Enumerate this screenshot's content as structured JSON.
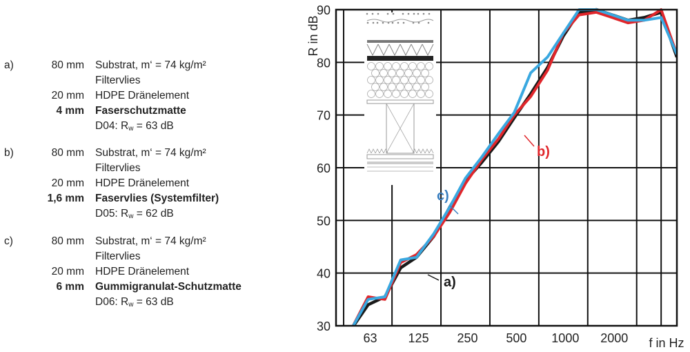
{
  "variants": [
    {
      "letter": "a)",
      "layers": [
        {
          "thickness": "80 mm",
          "text": "Substrat, m‘ = 74 kg/m²",
          "bold": false
        },
        {
          "thickness": "",
          "text": "Filtervlies",
          "bold": false
        },
        {
          "thickness": "20 mm",
          "text": "HDPE Dränelement",
          "bold": false
        },
        {
          "thickness": "4 mm",
          "text": "Faserschutzmatte",
          "bold": true
        }
      ],
      "rating_prefix": "D04: R",
      "rating_sub": "w",
      "rating_value": " = 63 dB"
    },
    {
      "letter": "b)",
      "layers": [
        {
          "thickness": "80 mm",
          "text": "Substrat, m‘ = 74 kg/m²",
          "bold": false
        },
        {
          "thickness": "",
          "text": "Filtervlies",
          "bold": false
        },
        {
          "thickness": "20 mm",
          "text": "HDPE Dränelement",
          "bold": false
        },
        {
          "thickness": "1,6 mm",
          "text": "Faservlies (Systemfilter)",
          "bold": true
        }
      ],
      "rating_prefix": "D05: R",
      "rating_sub": "w",
      "rating_value": " = 62 dB"
    },
    {
      "letter": "c)",
      "layers": [
        {
          "thickness": "80 mm",
          "text": "Substrat, m‘ = 74 kg/m²",
          "bold": false
        },
        {
          "thickness": "",
          "text": "Filtervlies",
          "bold": false
        },
        {
          "thickness": "20 mm",
          "text": "HDPE Dränelement",
          "bold": false
        },
        {
          "thickness": "6 mm",
          "text": "Gummigranulat-Schutzmatte",
          "bold": true
        }
      ],
      "rating_prefix": "D06: R",
      "rating_sub": "w",
      "rating_value": " = 63 dB"
    }
  ],
  "chart_data": {
    "type": "line",
    "ylabel": "R in dB",
    "xlabel": "f in Hz",
    "xscale": "log",
    "xlim": [
      40,
      5000
    ],
    "ylim": [
      30,
      90
    ],
    "yticks": [
      30,
      40,
      50,
      60,
      70,
      80,
      90
    ],
    "xticks": [
      {
        "value": 63,
        "label": "63"
      },
      {
        "value": 125,
        "label": "125"
      },
      {
        "value": 250,
        "label": "250"
      },
      {
        "value": 500,
        "label": "500"
      },
      {
        "value": 1000,
        "label": "1000"
      },
      {
        "value": 2000,
        "label": "2000"
      }
    ],
    "x": [
      50,
      63,
      80,
      100,
      125,
      160,
      200,
      250,
      315,
      400,
      500,
      630,
      800,
      1000,
      1250,
      1600,
      2000,
      2500,
      3150,
      4000,
      5000
    ],
    "grid": true,
    "series": [
      {
        "name": "a)",
        "color": "#1a1a1a",
        "values": [
          29.5,
          34,
          35.5,
          41,
          43,
          47,
          52.5,
          57.5,
          61,
          65,
          69.5,
          74,
          79,
          85,
          89.5,
          90,
          89,
          88,
          88.5,
          89.5,
          81
        ]
      },
      {
        "name": "b)",
        "color": "#e0262b",
        "values": [
          29.5,
          35.5,
          35,
          42,
          43.5,
          47,
          51.5,
          57,
          61.5,
          65.5,
          70,
          73.5,
          78.5,
          85.5,
          89,
          89.5,
          88.5,
          87.5,
          88,
          90,
          81.5
        ]
      },
      {
        "name": "c)",
        "color": "#3aa8e0",
        "values": [
          29.5,
          35,
          35.5,
          42.5,
          43,
          47.5,
          52.5,
          58,
          62,
          66.5,
          70.5,
          78,
          81,
          85.5,
          90,
          90,
          89,
          88,
          88,
          88.5,
          81.5
        ]
      }
    ],
    "annotations": [
      {
        "text": "a)",
        "color": "#1a1a1a"
      },
      {
        "text": "b)",
        "color": "#e0262b"
      },
      {
        "text": "c)",
        "color": "#3a7fc0"
      }
    ]
  }
}
